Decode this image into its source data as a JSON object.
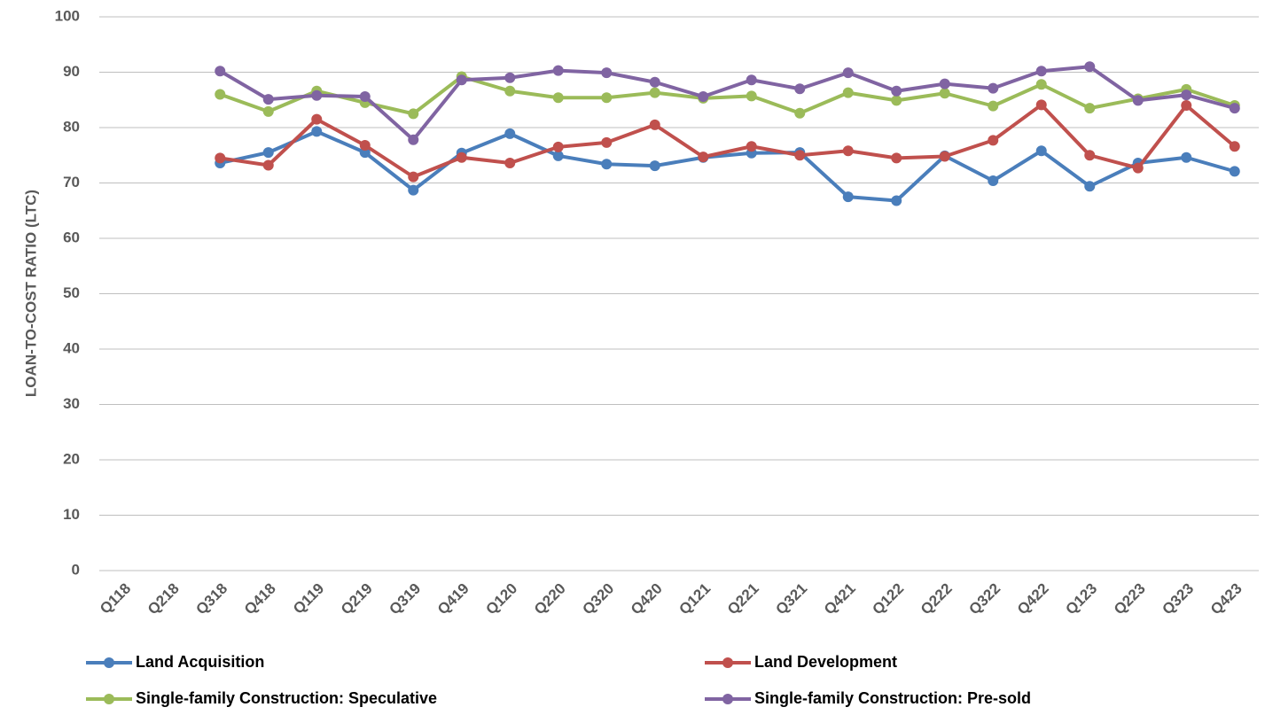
{
  "chart_data": {
    "type": "line",
    "y_label": "LOAN-TO-COST RATIO (LTC)",
    "categories": [
      "Q118",
      "Q218",
      "Q318",
      "Q418",
      "Q119",
      "Q219",
      "Q319",
      "Q419",
      "Q120",
      "Q220",
      "Q320",
      "Q420",
      "Q121",
      "Q221",
      "Q321",
      "Q421",
      "Q122",
      "Q222",
      "Q322",
      "Q422",
      "Q123",
      "Q223",
      "Q323",
      "Q423"
    ],
    "series": [
      {
        "name": "Land Acquisition",
        "color": "#4a7ebb",
        "values": [
          null,
          null,
          73.6,
          75.5,
          79.3,
          75.5,
          68.7,
          75.4,
          78.9,
          74.9,
          73.4,
          73.1,
          74.6,
          75.4,
          75.5,
          67.5,
          66.8,
          74.9,
          70.4,
          75.8,
          69.4,
          73.6,
          74.6,
          72.1
        ]
      },
      {
        "name": "Land Development",
        "color": "#c0504d",
        "values": [
          null,
          null,
          74.5,
          73.2,
          81.5,
          76.8,
          71.1,
          74.6,
          73.6,
          76.5,
          77.3,
          80.5,
          74.7,
          76.6,
          75.0,
          75.8,
          74.5,
          74.8,
          77.7,
          84.1,
          75.0,
          72.7,
          84.0,
          76.6
        ]
      },
      {
        "name": "Single-family Construction: Speculative",
        "color": "#9bbb59",
        "values": [
          null,
          null,
          86.0,
          82.9,
          86.6,
          84.5,
          82.5,
          89.2,
          86.6,
          85.4,
          85.4,
          86.3,
          85.3,
          85.7,
          82.6,
          86.3,
          84.9,
          86.2,
          83.9,
          87.8,
          83.5,
          85.2,
          86.9,
          84.0
        ]
      },
      {
        "name": "Single-family Construction: Pre-sold",
        "color": "#8064a2",
        "values": [
          null,
          null,
          90.2,
          85.1,
          85.8,
          85.6,
          77.8,
          88.6,
          89.0,
          90.3,
          89.9,
          88.2,
          85.6,
          88.6,
          87.0,
          89.9,
          86.6,
          87.9,
          87.1,
          90.2,
          91.0,
          84.9,
          85.9,
          83.5
        ]
      }
    ],
    "ylim": [
      0,
      100
    ],
    "yticks": [
      0,
      10,
      20,
      30,
      40,
      50,
      60,
      70,
      80,
      90,
      100
    ],
    "grid": true,
    "legend": "bottom"
  }
}
